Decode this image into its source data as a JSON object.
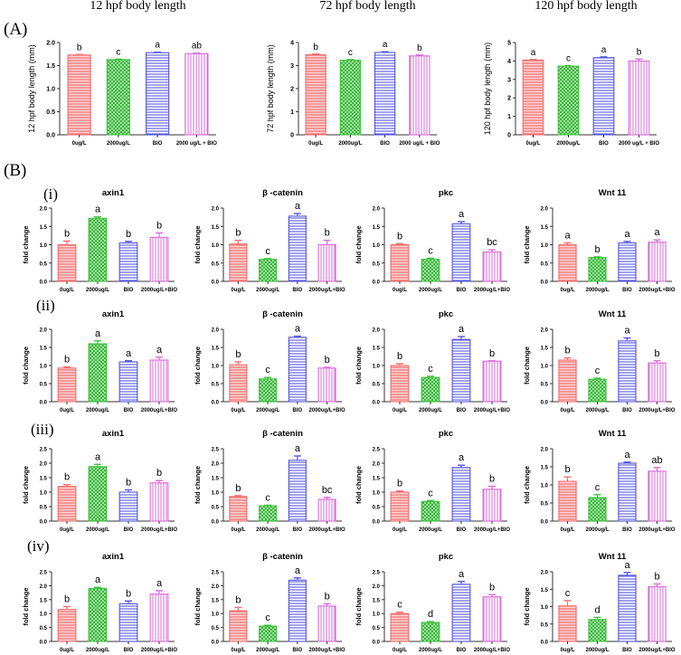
{
  "panel_labels": {
    "A": "(A)",
    "B": "(B)",
    "rows": [
      "(i)",
      "(ii)",
      "(iii)",
      "(iv)"
    ]
  },
  "colors": {
    "red": "#f26d6d",
    "green": "#3cc43c",
    "blue": "#5555e0",
    "magenta": "#d86ad8",
    "axis": "#333333"
  },
  "chart_data": [
    {
      "type": "bar",
      "title": "12 hpf body length",
      "ylabel": "12 hpf body length (mm)",
      "ylim": [
        0,
        2.0
      ],
      "yticks": [
        "0.0",
        "0.5",
        "1.0",
        "1.5",
        "2.0"
      ],
      "categories": [
        "0ug/L",
        "2000ug/L",
        "BIO",
        "2000 ug/L + BIO"
      ],
      "values": [
        1.73,
        1.63,
        1.78,
        1.76
      ],
      "errors": [
        0.01,
        0.01,
        0.01,
        0.01
      ],
      "letters": [
        "b",
        "c",
        "a",
        "ab"
      ]
    },
    {
      "type": "bar",
      "title": "72 hpf body length",
      "ylabel": "72 hpf body length (mm)",
      "ylim": [
        0,
        4
      ],
      "yticks": [
        "0",
        "1",
        "2",
        "3",
        "4"
      ],
      "categories": [
        "0ug/L",
        "2000ug/L",
        "BIO",
        "2000 ug/L + BIO"
      ],
      "values": [
        3.47,
        3.23,
        3.57,
        3.42
      ],
      "errors": [
        0.03,
        0.03,
        0.03,
        0.04
      ],
      "letters": [
        "b",
        "c",
        "a",
        "b"
      ]
    },
    {
      "type": "bar",
      "title": "120 hpf body length",
      "ylabel": "120 hpf body length (mm)",
      "ylim": [
        0,
        5
      ],
      "yticks": [
        "0",
        "1",
        "2",
        "3",
        "4",
        "5"
      ],
      "categories": [
        "0ug/L",
        "2000ug/L",
        "BIO",
        "2000 ug/L + BIO"
      ],
      "values": [
        4.05,
        3.72,
        4.18,
        4.0
      ],
      "errors": [
        0.03,
        0.03,
        0.04,
        0.1
      ],
      "letters": [
        "a",
        "c",
        "a",
        "b"
      ]
    },
    {
      "type": "bar",
      "title": "axin1",
      "ylabel": "fold change",
      "ylim": [
        0,
        2.0
      ],
      "yticks": [
        "0.0",
        "0.5",
        "1.0",
        "1.5",
        "2.0"
      ],
      "categories": [
        "0ug/L",
        "2000ug/L",
        "BIO",
        "2000ug/L+BIO"
      ],
      "values": [
        1.0,
        1.72,
        1.05,
        1.2
      ],
      "errors": [
        0.1,
        0.04,
        0.04,
        0.12
      ],
      "letters": [
        "b",
        "a",
        "b",
        "b"
      ]
    },
    {
      "type": "bar",
      "title": "β -catenin",
      "ylabel": "fold change",
      "ylim": [
        0,
        2.0
      ],
      "yticks": [
        "0.0",
        "0.5",
        "1.0",
        "1.5",
        "2.0"
      ],
      "categories": [
        "0ug/L",
        "2000ug/L",
        "BIO",
        "2000ug/L+BIO"
      ],
      "values": [
        1.02,
        0.6,
        1.78,
        1.0
      ],
      "errors": [
        0.1,
        0.02,
        0.07,
        0.12
      ],
      "letters": [
        "b",
        "c",
        "a",
        "b"
      ]
    },
    {
      "type": "bar",
      "title": "pkc",
      "ylabel": "fold change",
      "ylim": [
        0,
        2.0
      ],
      "yticks": [
        "0.0",
        "0.5",
        "1.0",
        "1.5",
        "2.0"
      ],
      "categories": [
        "0ug/L",
        "2000ug/L",
        "BIO",
        "2000ug/L+BIO"
      ],
      "values": [
        1.0,
        0.6,
        1.57,
        0.8
      ],
      "errors": [
        0.03,
        0.03,
        0.06,
        0.06
      ],
      "letters": [
        "b",
        "c",
        "a",
        "bc"
      ]
    },
    {
      "type": "bar",
      "title": "Wnt 11",
      "ylabel": "fold change",
      "ylim": [
        0,
        2.0
      ],
      "yticks": [
        "0.0",
        "0.5",
        "1.0",
        "1.5",
        "2.0"
      ],
      "categories": [
        "0ug/L",
        "2000ug/L",
        "BIO",
        "2000ug/L+BIO"
      ],
      "values": [
        1.0,
        0.65,
        1.05,
        1.07
      ],
      "errors": [
        0.05,
        0.02,
        0.04,
        0.06
      ],
      "letters": [
        "a",
        "b",
        "a",
        "a"
      ]
    },
    {
      "type": "bar",
      "title": "axin1",
      "ylabel": "fold change",
      "ylim": [
        0,
        2.0
      ],
      "yticks": [
        "0.0",
        "0.5",
        "1.0",
        "1.5",
        "2.0"
      ],
      "categories": [
        "0ug/L",
        "2000ug/L",
        "BIO",
        "2000ug/L+BIO"
      ],
      "values": [
        0.93,
        1.6,
        1.1,
        1.15
      ],
      "errors": [
        0.03,
        0.08,
        0.03,
        0.08
      ],
      "letters": [
        "b",
        "a",
        "a",
        "a"
      ]
    },
    {
      "type": "bar",
      "title": "β -catenin",
      "ylabel": "fold change",
      "ylim": [
        0,
        2.0
      ],
      "yticks": [
        "0.0",
        "0.5",
        "1.0",
        "1.5",
        "2.0"
      ],
      "categories": [
        "0ug/L",
        "2000ug/L",
        "BIO",
        "2000ug/L+BIO"
      ],
      "values": [
        1.02,
        0.63,
        1.78,
        0.93
      ],
      "errors": [
        0.08,
        0.04,
        0.03,
        0.02
      ],
      "letters": [
        "b",
        "c",
        "a",
        "b"
      ]
    },
    {
      "type": "bar",
      "title": "pkc",
      "ylabel": "fold change",
      "ylim": [
        0,
        2.0
      ],
      "yticks": [
        "0.0",
        "0.5",
        "1.0",
        "1.5",
        "2.0"
      ],
      "categories": [
        "0ug/L",
        "2000ug/L",
        "BIO",
        "2000ug/L+BIO"
      ],
      "values": [
        1.0,
        0.67,
        1.72,
        1.12
      ],
      "errors": [
        0.05,
        0.03,
        0.08,
        0.01
      ],
      "letters": [
        "b",
        "c",
        "a",
        "b"
      ]
    },
    {
      "type": "bar",
      "title": "Wnt 11",
      "ylabel": "fold change",
      "ylim": [
        0,
        2.0
      ],
      "yticks": [
        "0.0",
        "0.5",
        "1.0",
        "1.5",
        "2.0"
      ],
      "categories": [
        "0ug/L",
        "2000ug/L",
        "BIO",
        "2000ug/L+BIO"
      ],
      "values": [
        1.15,
        0.62,
        1.68,
        1.07
      ],
      "errors": [
        0.06,
        0.03,
        0.08,
        0.06
      ],
      "letters": [
        "b",
        "c",
        "a",
        "b"
      ]
    },
    {
      "type": "bar",
      "title": "axin1",
      "ylabel": "fold change",
      "ylim": [
        0,
        2.5
      ],
      "yticks": [
        "0.0",
        "0.5",
        "1.0",
        "1.5",
        "2.0",
        "2.5"
      ],
      "categories": [
        "0ug/L",
        "2000ug/L",
        "BIO",
        "2000ug/L+BIO"
      ],
      "values": [
        1.2,
        1.88,
        1.0,
        1.32
      ],
      "errors": [
        0.06,
        0.08,
        0.08,
        0.08
      ],
      "letters": [
        "b",
        "a",
        "b",
        "b"
      ]
    },
    {
      "type": "bar",
      "title": "β -catenin",
      "ylabel": "fold change",
      "ylim": [
        0,
        2.5
      ],
      "yticks": [
        "0.0",
        "0.5",
        "1.0",
        "1.5",
        "2.0",
        "2.5"
      ],
      "categories": [
        "0ug/L",
        "2000ug/L",
        "BIO",
        "2000ug/L+BIO"
      ],
      "values": [
        0.85,
        0.53,
        2.1,
        0.75
      ],
      "errors": [
        0.03,
        0.02,
        0.15,
        0.07
      ],
      "letters": [
        "b",
        "c",
        "a",
        "bc"
      ]
    },
    {
      "type": "bar",
      "title": "pkc",
      "ylabel": "fold change",
      "ylim": [
        0,
        2.5
      ],
      "yticks": [
        "0.0",
        "0.5",
        "1.0",
        "1.5",
        "2.0",
        "2.5"
      ],
      "categories": [
        "0ug/L",
        "2000ug/L",
        "BIO",
        "2000ug/L+BIO"
      ],
      "values": [
        1.0,
        0.68,
        1.85,
        1.1
      ],
      "errors": [
        0.04,
        0.03,
        0.08,
        0.1
      ],
      "letters": [
        "b",
        "c",
        "a",
        "b"
      ]
    },
    {
      "type": "bar",
      "title": "Wnt 11",
      "ylabel": "fold change",
      "ylim": [
        0,
        2.0
      ],
      "yticks": [
        "0.0",
        "0.5",
        "1.0",
        "1.5",
        "2.0"
      ],
      "categories": [
        "0ug/L",
        "2000ug/L",
        "BIO",
        "2000ug/L+BIO"
      ],
      "values": [
        1.1,
        0.65,
        1.6,
        1.38
      ],
      "errors": [
        0.12,
        0.08,
        0.03,
        0.1
      ],
      "letters": [
        "b",
        "c",
        "a",
        "ab"
      ]
    },
    {
      "type": "bar",
      "title": "axin1",
      "ylabel": "fold change",
      "ylim": [
        0,
        2.5
      ],
      "yticks": [
        "0.0",
        "0.5",
        "1.0",
        "1.5",
        "2.0",
        "2.5"
      ],
      "categories": [
        "0ug/L",
        "2000ug/L",
        "BIO",
        "2000ug/L+BIO"
      ],
      "values": [
        1.15,
        1.9,
        1.35,
        1.7
      ],
      "errors": [
        0.1,
        0.04,
        0.1,
        0.12
      ],
      "letters": [
        "b",
        "a",
        "b",
        "a"
      ]
    },
    {
      "type": "bar",
      "title": "β -catenin",
      "ylabel": "fold change",
      "ylim": [
        0,
        2.5
      ],
      "yticks": [
        "0.0",
        "0.5",
        "1.0",
        "1.5",
        "2.0",
        "2.5"
      ],
      "categories": [
        "0ug/L",
        "2000ug/L",
        "BIO",
        "2000ug/L+BIO"
      ],
      "values": [
        1.1,
        0.55,
        2.2,
        1.27
      ],
      "errors": [
        0.12,
        0.03,
        0.08,
        0.08
      ],
      "letters": [
        "b",
        "c",
        "a",
        "b"
      ]
    },
    {
      "type": "bar",
      "title": "pkc",
      "ylabel": "fold change",
      "ylim": [
        0,
        2.5
      ],
      "yticks": [
        "0.0",
        "0.5",
        "1.0",
        "1.5",
        "2.0",
        "2.5"
      ],
      "categories": [
        "0ug/L",
        "2000ug/L",
        "BIO",
        "2000ug/L+BIO"
      ],
      "values": [
        1.0,
        0.68,
        2.05,
        1.6
      ],
      "errors": [
        0.05,
        0.03,
        0.1,
        0.08
      ],
      "letters": [
        "c",
        "d",
        "a",
        "b"
      ]
    },
    {
      "type": "bar",
      "title": "Wnt 11",
      "ylabel": "fold change",
      "ylim": [
        0,
        2.0
      ],
      "yticks": [
        "0.0",
        "0.5",
        "1.0",
        "1.5",
        "2.0"
      ],
      "categories": [
        "0ug/L",
        "2000ug/L",
        "BIO",
        "2000ug/L+BIO"
      ],
      "values": [
        1.02,
        0.63,
        1.9,
        1.57
      ],
      "errors": [
        0.15,
        0.06,
        0.08,
        0.08
      ],
      "letters": [
        "c",
        "d",
        "a",
        "b"
      ]
    }
  ]
}
